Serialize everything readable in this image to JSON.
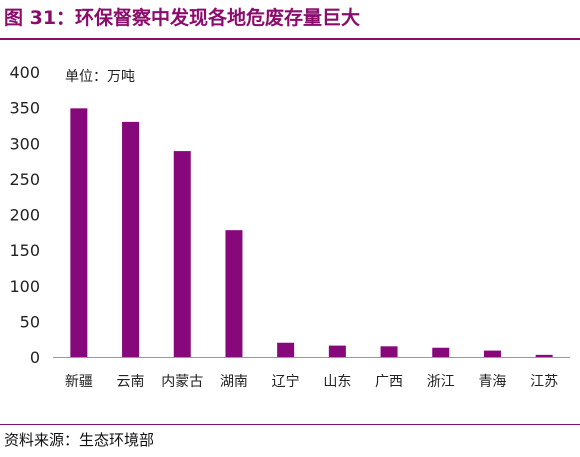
{
  "header": {
    "title": "图 31：环保督察中发现各地危废存量巨大"
  },
  "footer": {
    "source": "资料来源：生态环境部"
  },
  "colors": {
    "accent": "#8a0c6c",
    "bar": "#87087a"
  },
  "chart_data": {
    "type": "bar",
    "title": "",
    "unit_label": "单位：万吨",
    "xlabel": "",
    "ylabel": "",
    "ylim": [
      0,
      400
    ],
    "yticks": [
      0,
      50,
      100,
      150,
      200,
      250,
      300,
      350,
      400
    ],
    "grid": false,
    "legend": "none",
    "categories": [
      "新疆",
      "云南",
      "内蒙古",
      "湖南",
      "辽宁",
      "山东",
      "广西",
      "浙江",
      "青海",
      "江苏"
    ],
    "values": [
      349,
      330,
      289,
      178,
      20,
      16,
      15,
      13,
      9,
      3
    ]
  }
}
